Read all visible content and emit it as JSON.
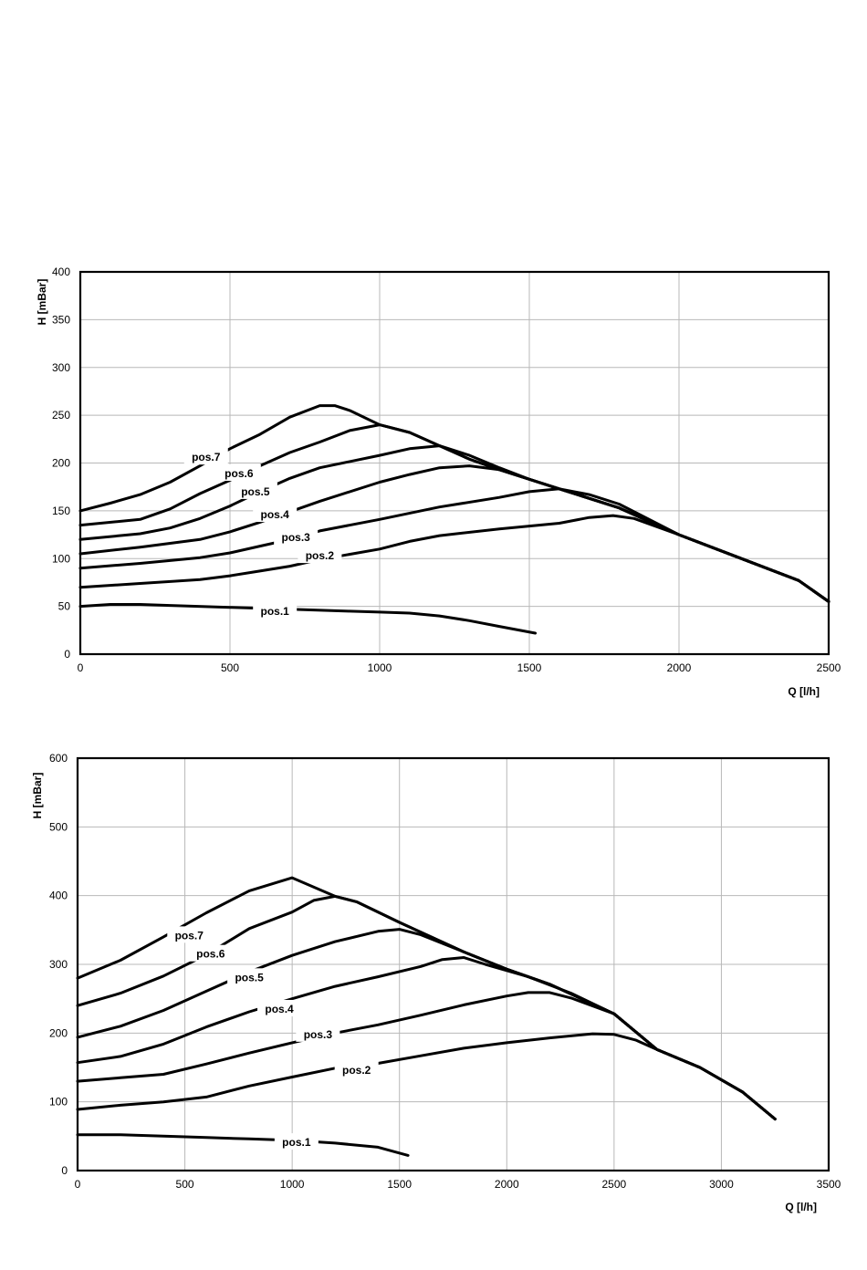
{
  "chart_data": [
    {
      "type": "line",
      "xlabel": "Q [l/h]",
      "ylabel": "H [mBar]",
      "xlim": [
        0,
        2500
      ],
      "ylim": [
        0,
        400
      ],
      "xticks": [
        0,
        500,
        1000,
        1500,
        2000,
        2500
      ],
      "yticks": [
        0,
        50,
        100,
        150,
        200,
        250,
        300,
        350,
        400
      ],
      "grid": true,
      "series": [
        {
          "name": "pos.1",
          "label_at": [
            650,
            45
          ],
          "points": [
            [
              0,
              50
            ],
            [
              100,
              52
            ],
            [
              200,
              52
            ],
            [
              300,
              51
            ],
            [
              500,
              49
            ],
            [
              700,
              47
            ],
            [
              900,
              45
            ],
            [
              1000,
              44
            ],
            [
              1100,
              43
            ],
            [
              1200,
              40
            ],
            [
              1300,
              35
            ],
            [
              1400,
              29
            ],
            [
              1520,
              22
            ]
          ]
        },
        {
          "name": "pos.2",
          "label_at": [
            800,
            103
          ],
          "points": [
            [
              0,
              70
            ],
            [
              200,
              74
            ],
            [
              400,
              78
            ],
            [
              500,
              82
            ],
            [
              600,
              87
            ],
            [
              700,
              92
            ],
            [
              800,
              99
            ],
            [
              1000,
              110
            ],
            [
              1100,
              118
            ],
            [
              1200,
              124
            ],
            [
              1400,
              131
            ],
            [
              1600,
              137
            ],
            [
              1700,
              143
            ],
            [
              1780,
              145
            ],
            [
              1850,
              142
            ],
            [
              2000,
              125
            ],
            [
              2200,
              101
            ],
            [
              2400,
              77
            ],
            [
              2500,
              55
            ]
          ]
        },
        {
          "name": "pos.3",
          "label_at": [
            720,
            122
          ],
          "points": [
            [
              0,
              90
            ],
            [
              200,
              95
            ],
            [
              400,
              101
            ],
            [
              500,
              106
            ],
            [
              600,
              113
            ],
            [
              700,
              120
            ],
            [
              800,
              129
            ],
            [
              1000,
              141
            ],
            [
              1200,
              154
            ],
            [
              1400,
              164
            ],
            [
              1500,
              170
            ],
            [
              1600,
              173
            ],
            [
              1700,
              167
            ],
            [
              1800,
              157
            ],
            [
              2000,
              125
            ],
            [
              2200,
              101
            ],
            [
              2400,
              77
            ],
            [
              2500,
              55
            ]
          ]
        },
        {
          "name": "pos.4",
          "label_at": [
            650,
            146
          ],
          "points": [
            [
              0,
              105
            ],
            [
              200,
              112
            ],
            [
              400,
              120
            ],
            [
              500,
              128
            ],
            [
              600,
              138
            ],
            [
              700,
              149
            ],
            [
              800,
              160
            ],
            [
              1000,
              180
            ],
            [
              1100,
              188
            ],
            [
              1200,
              195
            ],
            [
              1300,
              197
            ],
            [
              1400,
              193
            ],
            [
              1500,
              183
            ],
            [
              1600,
              173
            ],
            [
              1800,
              153
            ],
            [
              2000,
              125
            ],
            [
              2200,
              101
            ],
            [
              2400,
              77
            ],
            [
              2500,
              55
            ]
          ]
        },
        {
          "name": "pos.5",
          "label_at": [
            585,
            170
          ],
          "points": [
            [
              0,
              120
            ],
            [
              200,
              126
            ],
            [
              300,
              132
            ],
            [
              400,
              142
            ],
            [
              500,
              155
            ],
            [
              600,
              170
            ],
            [
              700,
              184
            ],
            [
              800,
              195
            ],
            [
              1000,
              208
            ],
            [
              1100,
              215
            ],
            [
              1200,
              218
            ],
            [
              1300,
              208
            ],
            [
              1400,
              195
            ],
            [
              1500,
              183
            ],
            [
              1600,
              173
            ],
            [
              1800,
              153
            ],
            [
              2000,
              125
            ],
            [
              2200,
              101
            ],
            [
              2400,
              77
            ],
            [
              2500,
              55
            ]
          ]
        },
        {
          "name": "pos.6",
          "label_at": [
            530,
            189
          ],
          "points": [
            [
              0,
              135
            ],
            [
              200,
              141
            ],
            [
              300,
              152
            ],
            [
              400,
              168
            ],
            [
              500,
              182
            ],
            [
              600,
              197
            ],
            [
              700,
              211
            ],
            [
              800,
              222
            ],
            [
              900,
              234
            ],
            [
              1000,
              240
            ],
            [
              1100,
              232
            ],
            [
              1200,
              218
            ],
            [
              1300,
              204
            ],
            [
              1400,
              193
            ],
            [
              1500,
              183
            ],
            [
              1600,
              173
            ],
            [
              1800,
              153
            ],
            [
              2000,
              125
            ],
            [
              2200,
              101
            ],
            [
              2400,
              77
            ],
            [
              2500,
              55
            ]
          ]
        },
        {
          "name": "pos.7",
          "label_at": [
            420,
            206
          ],
          "points": [
            [
              0,
              150
            ],
            [
              100,
              158
            ],
            [
              200,
              167
            ],
            [
              300,
              180
            ],
            [
              400,
              197
            ],
            [
              500,
              215
            ],
            [
              600,
              230
            ],
            [
              700,
              248
            ],
            [
              800,
              260
            ],
            [
              850,
              260
            ],
            [
              900,
              255
            ],
            [
              1000,
              240
            ],
            [
              1100,
              232
            ],
            [
              1200,
              218
            ],
            [
              1300,
              204
            ],
            [
              1400,
              193
            ],
            [
              1500,
              183
            ],
            [
              1600,
              173
            ],
            [
              1800,
              153
            ],
            [
              2000,
              125
            ],
            [
              2200,
              101
            ],
            [
              2400,
              77
            ],
            [
              2500,
              55
            ]
          ]
        }
      ]
    },
    {
      "type": "line",
      "xlabel": "Q [l/h]",
      "ylabel": "H [mBar]",
      "xlim": [
        0,
        3500
      ],
      "ylim": [
        0,
        600
      ],
      "xticks": [
        0,
        500,
        1000,
        1500,
        2000,
        2500,
        3000,
        3500
      ],
      "yticks": [
        0,
        100,
        200,
        300,
        400,
        500,
        600
      ],
      "grid": true,
      "series": [
        {
          "name": "pos.1",
          "label_at": [
            1020,
            41
          ],
          "points": [
            [
              0,
              52
            ],
            [
              200,
              52
            ],
            [
              400,
              50
            ],
            [
              600,
              48
            ],
            [
              800,
              46
            ],
            [
              1000,
              44
            ],
            [
              1200,
              40
            ],
            [
              1400,
              34
            ],
            [
              1540,
              22
            ]
          ]
        },
        {
          "name": "pos.2",
          "label_at": [
            1300,
            146
          ],
          "points": [
            [
              0,
              89
            ],
            [
              200,
              95
            ],
            [
              400,
              100
            ],
            [
              600,
              107
            ],
            [
              800,
              123
            ],
            [
              1000,
              136
            ],
            [
              1200,
              149
            ],
            [
              1400,
              156
            ],
            [
              1600,
              167
            ],
            [
              1800,
              178
            ],
            [
              2000,
              186
            ],
            [
              2200,
              193
            ],
            [
              2400,
              199
            ],
            [
              2500,
              198
            ],
            [
              2600,
              190
            ],
            [
              2700,
              176
            ],
            [
              2900,
              150
            ],
            [
              3100,
              114
            ],
            [
              3250,
              75
            ]
          ]
        },
        {
          "name": "pos.3",
          "label_at": [
            1120,
            198
          ],
          "points": [
            [
              0,
              130
            ],
            [
              200,
              135
            ],
            [
              400,
              140
            ],
            [
              600,
              155
            ],
            [
              800,
              171
            ],
            [
              1000,
              186
            ],
            [
              1200,
              200
            ],
            [
              1400,
              212
            ],
            [
              1600,
              226
            ],
            [
              1800,
              241
            ],
            [
              2000,
              254
            ],
            [
              2100,
              259
            ],
            [
              2200,
              259
            ],
            [
              2300,
              251
            ],
            [
              2500,
              228
            ],
            [
              2700,
              176
            ],
            [
              2900,
              150
            ],
            [
              3100,
              114
            ],
            [
              3250,
              75
            ]
          ]
        },
        {
          "name": "pos.4",
          "label_at": [
            940,
            235
          ],
          "points": [
            [
              0,
              157
            ],
            [
              200,
              166
            ],
            [
              400,
              184
            ],
            [
              600,
              209
            ],
            [
              800,
              231
            ],
            [
              1000,
              250
            ],
            [
              1200,
              268
            ],
            [
              1400,
              282
            ],
            [
              1600,
              297
            ],
            [
              1700,
              307
            ],
            [
              1800,
              310
            ],
            [
              1900,
              300
            ],
            [
              2100,
              282
            ],
            [
              2300,
              258
            ],
            [
              2500,
              228
            ],
            [
              2700,
              176
            ],
            [
              2900,
              150
            ],
            [
              3100,
              114
            ],
            [
              3250,
              75
            ]
          ]
        },
        {
          "name": "pos.5",
          "label_at": [
            800,
            281
          ],
          "points": [
            [
              0,
              194
            ],
            [
              200,
              210
            ],
            [
              400,
              233
            ],
            [
              600,
              261
            ],
            [
              800,
              289
            ],
            [
              1000,
              313
            ],
            [
              1200,
              333
            ],
            [
              1400,
              348
            ],
            [
              1500,
              351
            ],
            [
              1600,
              343
            ],
            [
              1800,
              318
            ],
            [
              2000,
              293
            ],
            [
              2200,
              271
            ],
            [
              2500,
              228
            ],
            [
              2700,
              176
            ],
            [
              2900,
              150
            ],
            [
              3100,
              114
            ],
            [
              3250,
              75
            ]
          ]
        },
        {
          "name": "pos.6",
          "label_at": [
            620,
            315
          ],
          "points": [
            [
              0,
              240
            ],
            [
              200,
              258
            ],
            [
              400,
              283
            ],
            [
              600,
              314
            ],
            [
              800,
              352
            ],
            [
              1000,
              376
            ],
            [
              1100,
              393
            ],
            [
              1200,
              399
            ],
            [
              1300,
              391
            ],
            [
              1500,
              361
            ],
            [
              1800,
              318
            ],
            [
              2000,
              293
            ],
            [
              2200,
              271
            ],
            [
              2500,
              228
            ],
            [
              2700,
              176
            ],
            [
              2900,
              150
            ],
            [
              3100,
              114
            ],
            [
              3250,
              75
            ]
          ]
        },
        {
          "name": "pos.7",
          "label_at": [
            520,
            342
          ],
          "points": [
            [
              0,
              280
            ],
            [
              200,
              306
            ],
            [
              400,
              340
            ],
            [
              600,
              375
            ],
            [
              800,
              407
            ],
            [
              1000,
              426
            ],
            [
              1200,
              399
            ],
            [
              1300,
              391
            ],
            [
              1500,
              361
            ],
            [
              1800,
              318
            ],
            [
              2000,
              293
            ],
            [
              2200,
              271
            ],
            [
              2500,
              228
            ],
            [
              2700,
              176
            ],
            [
              2900,
              150
            ],
            [
              3100,
              114
            ],
            [
              3250,
              75
            ]
          ]
        }
      ]
    }
  ]
}
